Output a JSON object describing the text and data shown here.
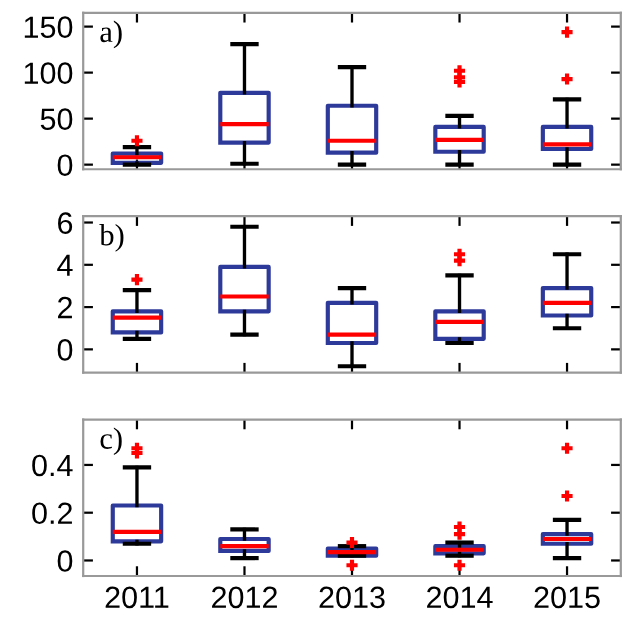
{
  "chart_data": [
    {
      "type": "box",
      "categories": [
        "2011",
        "2012",
        "2013",
        "2014",
        "2015"
      ],
      "ylim": [
        -5,
        165
      ],
      "yticks": [
        0,
        50,
        100,
        150
      ],
      "tick_labels": "y",
      "grid": false,
      "annotations": [
        "a)"
      ],
      "series": [
        {
          "color": "#2e3a9a",
          "boxes": [
            {
              "low": 0,
              "q1": 2,
              "median": 8,
              "q3": 12,
              "high": 19,
              "outliers": [
                26
              ]
            },
            {
              "low": 1,
              "q1": 24,
              "median": 44,
              "q3": 78,
              "high": 131
            },
            {
              "low": 0,
              "q1": 13,
              "median": 26,
              "q3": 64,
              "high": 106
            },
            {
              "low": 0,
              "q1": 14,
              "median": 27,
              "q3": 41,
              "high": 53,
              "outliers": [
                90,
                95,
                102
              ]
            },
            {
              "low": 0,
              "q1": 17,
              "median": 22,
              "q3": 41,
              "high": 71,
              "outliers": [
                93,
                144
              ]
            }
          ]
        }
      ]
    },
    {
      "type": "box",
      "categories": [
        "2011",
        "2012",
        "2013",
        "2014",
        "2015"
      ],
      "ylim": [
        -1.1,
        6.3
      ],
      "yticks": [
        0,
        2,
        4,
        6
      ],
      "tick_labels": "y",
      "grid": false,
      "annotations": [
        "b)"
      ],
      "series": [
        {
          "color": "#2e3a9a",
          "boxes": [
            {
              "low": 0.5,
              "q1": 0.8,
              "median": 1.5,
              "q3": 1.8,
              "high": 2.8,
              "outliers": [
                3.3
              ]
            },
            {
              "low": 0.7,
              "q1": 1.8,
              "median": 2.5,
              "q3": 3.9,
              "high": 5.8
            },
            {
              "low": -0.8,
              "q1": 0.3,
              "median": 0.7,
              "q3": 2.2,
              "high": 2.9
            },
            {
              "low": 0.3,
              "q1": 0.5,
              "median": 1.3,
              "q3": 1.8,
              "high": 3.5,
              "outliers": [
                4.2,
                4.5
              ]
            },
            {
              "low": 1.0,
              "q1": 1.6,
              "median": 2.2,
              "q3": 2.9,
              "high": 4.5
            }
          ]
        }
      ]
    },
    {
      "type": "box",
      "categories": [
        "2011",
        "2012",
        "2013",
        "2014",
        "2015"
      ],
      "ylim": [
        -0.065,
        0.59
      ],
      "yticks": [
        0,
        0.2,
        0.4
      ],
      "grid": false,
      "annotations": [
        "c)"
      ],
      "series": [
        {
          "color": "#2e3a9a",
          "boxes": [
            {
              "low": 0.07,
              "q1": 0.08,
              "median": 0.12,
              "q3": 0.23,
              "high": 0.39,
              "outliers": [
                0.45,
                0.47
              ]
            },
            {
              "low": 0.01,
              "q1": 0.04,
              "median": 0.06,
              "q3": 0.09,
              "high": 0.13
            },
            {
              "low": 0.02,
              "q1": 0.02,
              "median": 0.035,
              "q3": 0.05,
              "high": 0.06,
              "outliers": [
                -0.02,
                0.075
              ]
            },
            {
              "low": 0.02,
              "q1": 0.03,
              "median": 0.045,
              "q3": 0.06,
              "high": 0.075,
              "outliers": [
                -0.02,
                0.11,
                0.14
              ]
            },
            {
              "low": 0.01,
              "q1": 0.07,
              "median": 0.09,
              "q3": 0.11,
              "high": 0.17,
              "outliers": [
                0.27,
                0.47
              ]
            }
          ]
        }
      ]
    }
  ]
}
